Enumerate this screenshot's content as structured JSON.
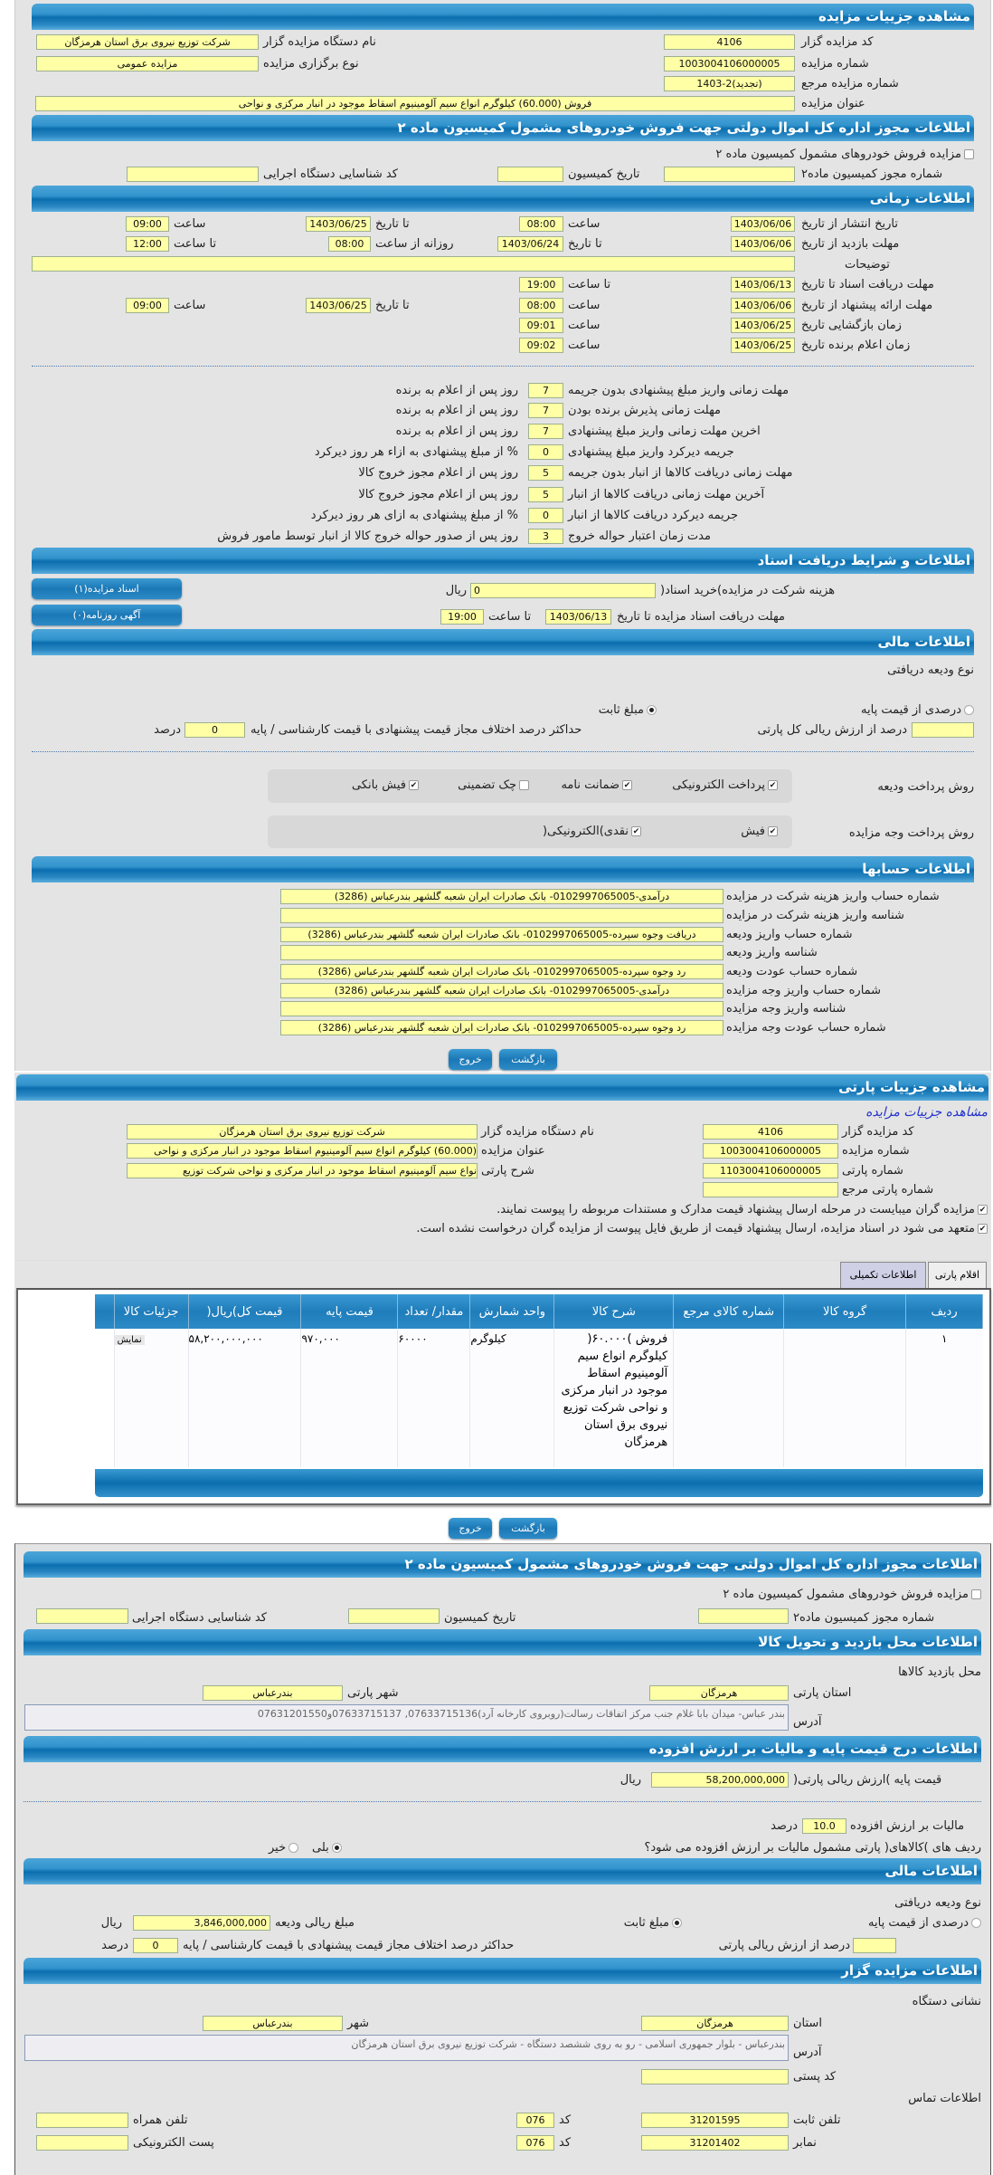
{
  "auction": {
    "title": "مشاهده جزییات مزایده",
    "kod_label": "کد مزایده گزار",
    "kod": "4106",
    "shomare_label": "شماره مزایده",
    "shomare": "1003004106000005",
    "marja_label": "شماره مزایده مرجع",
    "marja": "(تجدید)2-1403",
    "onvan_label": "عنوان مزایده",
    "onvan": "فروش (60.000) کیلوگرم انواع سیم آلومینیوم اسقاط موجود در انبار مرکزی و نواحی",
    "nam_label": "نام دستگاه مزایده گزار",
    "nam": "شرکت توزیع نیروی برق استان هرمزگان",
    "nou_label": "نوع برگزاری مزایده",
    "nou": "مزایده عمومی"
  },
  "permit": {
    "title": "اطلاعات مجوز اداره کل اموال دولتی جهت فروش خودروهای مشمول کمیسیون ماده ۲",
    "checkbox_label": "مزایده فروش خودروهای مشمول کمیسیون ماده ۲",
    "checked": false,
    "shomare_label": "شماره مجوز کمیسیون ماده۲",
    "shomare": "",
    "tarikh_label": "تاریخ کمیسیون",
    "tarikh": "",
    "kod_label": "کد شناسایی دستگاه اجرایی",
    "kod": ""
  },
  "timing": {
    "title": "اطلاعات زمانی",
    "enteshar_label": "تاریخ انتشار  از تاریخ",
    "enteshar_from": "1403/06/06",
    "saat": "ساعت",
    "enteshar_from_time": "08:00",
    "ta_tarikh": "تا تاریخ",
    "enteshar_to": "1403/06/25",
    "enteshar_to_time": "09:00",
    "bazdid_label": "مهلت بازدید  از تاریخ",
    "bazdid_from": "1403/06/06",
    "bazdid_to": "1403/06/24",
    "roozane": "روزانه از ساعت",
    "bazdid_from_time": "08:00",
    "ta_saat": "تا ساعت",
    "bazdid_to_time": "12:00",
    "tozihat_label": "توضیحات",
    "tozihat": "",
    "daryaft_label": "مهلت دریافت اسناد  تا تاریخ",
    "daryaft_to": "1403/06/13",
    "daryaft_time": "19:00",
    "erae_label": "مهلت ارائه پیشنهاد  از تاریخ",
    "erae_from": "1403/06/06",
    "erae_from_time": "08:00",
    "erae_to": "1403/06/25",
    "erae_to_time": "09:00",
    "bazgoshaei_label": "زمان بازگشایی    تاریخ",
    "bazgoshaei": "1403/06/25",
    "bazgoshaei_time": "09:01",
    "elam_label": "زمان اعلام برنده    تاریخ",
    "elam": "1403/06/25",
    "elam_time": "09:02"
  },
  "deadlines": [
    {
      "label": "مهلت زمانی واریز مبلغ پیشنهادی بدون جریمه",
      "value": "7",
      "suffix": "روز پس از اعلام به برنده"
    },
    {
      "label": "مهلت زمانی پذیرش برنده بودن",
      "value": "7",
      "suffix": "روز پس از اعلام به برنده"
    },
    {
      "label": "اخرین مهلت زمانی واریز مبلغ پیشنهادی",
      "value": "7",
      "suffix": "روز پس از اعلام به برنده"
    },
    {
      "label": "جریمه دیرکرد واریز مبلغ پیشنهادی",
      "value": "0",
      "suffix": "% از مبلغ پیشنهادی به ازاء هر روز دیرکرد"
    },
    {
      "label": "مهلت زمانی دریافت کالاها از انبار بدون جریمه",
      "value": "5",
      "suffix": "روز پس از اعلام مجوز خروج کالا"
    },
    {
      "label": "آخرین مهلت زمانی دریافت کالاها از انبار",
      "value": "5",
      "suffix": "روز پس از اعلام مجوز خروج کالا"
    },
    {
      "label": "جریمه دیرکرد دریافت کالاها از انبار",
      "value": "0",
      "suffix": "% از مبلغ پیشنهادی به ازای هر روز دیرکرد"
    },
    {
      "label": "مدت زمان اعتبار حواله خروج",
      "value": "3",
      "suffix": "روز پس از صدور حواله خروج کالا از انبار توسط مامور فروش"
    }
  ],
  "documents": {
    "title": "اطلاعات و شرایط دریافت اسناد",
    "hazine_label": "هزینه شرکت در مزایده)خرید اسناد(",
    "hazine": "0",
    "rial": "ریال",
    "mohlat_label": "مهلت دریافت اسناد مزایده تا تاریخ",
    "mohlat_date": "1403/06/13",
    "ta_saat": "تا ساعت",
    "mohlat_time": "19:00",
    "btn_asnad": "اسناد مزایده(۱)",
    "btn_agahi": "آگهی روزنامه(۰)"
  },
  "finance": {
    "title": "اطلاعات مالی",
    "nou_label": "نوع ودیعه دریافتی",
    "radio_percent": "درصدی از قیمت پایه",
    "radio_fixed": "مبلغ ثابت",
    "selected": "مبلغ ثابت",
    "percent_label": "درصد از ارزش ریالی کل پارتی",
    "percent": "",
    "max_label": "حداکثر درصد اختلاف مجاز قیمت پیشنهادی با قیمت کارشناسی / پایه",
    "max": "0",
    "darsad": "درصد",
    "deposit_method_label": "روش پرداخت ودیعه",
    "deposit_methods": [
      {
        "label": "پرداخت الکترونیکی",
        "checked": true
      },
      {
        "label": "ضمانت نامه",
        "checked": true
      },
      {
        "label": "چک تضمینی",
        "checked": false
      },
      {
        "label": "فیش بانکی",
        "checked": true
      }
    ],
    "payment_method_label": "روش پرداخت وجه مزایده",
    "payment_methods": [
      {
        "label": "فیش",
        "checked": true
      },
      {
        "label": "نقدی)الکترونیکی(",
        "checked": true
      }
    ]
  },
  "accounts": {
    "title": "اطلاعات حسابها",
    "rows": [
      {
        "label": "شماره حساب واریز هزینه شرکت در مزایده",
        "value": "درآمدی-0102997065005- بانک صادرات ایران شعبه گلشهر بندرعباس (3286)"
      },
      {
        "label": "شناسه واریز هزینه شرکت در مزایده",
        "value": ""
      },
      {
        "label": "شماره حساب واریز ودیعه",
        "value": "دریافت وجوه سپرده-0102997065005- بانک صادرات ایران شعبه گلشهر بندرعباس (3286)"
      },
      {
        "label": "شناسه واریز ودیعه",
        "value": ""
      },
      {
        "label": "شماره حساب عودت ودیعه",
        "value": "رد وجوه سپرده-0102997065005- بانک صادرات ایران شعبه گلشهر بندرعباس (3286)"
      },
      {
        "label": "شماره حساب واریز وجه مزایده",
        "value": "درآمدی-0102997065005- بانک صادرات ایران شعبه گلشهر بندرعباس (3286)"
      },
      {
        "label": "شناسه واریز وجه مزایده",
        "value": ""
      },
      {
        "label": "شماره حساب عودت وجه مزایده",
        "value": "رد وجوه سپرده-0102997065005- بانک صادرات ایران شعبه گلشهر بندرعباس (3286)"
      }
    ]
  },
  "buttons": {
    "back": "بازگشت",
    "exit": "خروج"
  },
  "party": {
    "title": "مشاهده جزییات پارتی",
    "link": "مشاهده جزییات مزایده",
    "kod_label": "کد مزایده گزار",
    "kod": "4106",
    "shomare_label": "شماره مزایده",
    "shomare": "1003004106000005",
    "parti_label": "شماره پارتی",
    "parti": "1103004106000005",
    "marja_label": "شماره پارتی مرجع",
    "marja": "",
    "nam_label": "نام دستگاه مزایده گزار",
    "nam": "شرکت توزیع نیروی برق استان هرمزگان",
    "onvan_label": "عنوان مزایده",
    "onvan": "(60.000) کیلوگرم انواع سیم آلومینیوم اسقاط موجود در انبار مرکزی و نواحی",
    "sharh_label": "شرح پارتی",
    "sharh": "نواع سیم آلومینیوم اسقاط موجود در انبار مرکزی و نواحی شرکت توزیع",
    "check1": "مزایده گران میبایست در مرحله ارسال پیشنهاد قیمت مدارک و مستندات مربوطه را پیوست نمایند.",
    "check2": "متعهد می شود در اسناد مزایده، ارسال پیشنهاد قیمت از طریق فایل پیوست از مزایده گران درخواست نشده است.",
    "tabs": [
      {
        "label": "اقلام پارتی",
        "active": false
      },
      {
        "label": "اطلاعات تکمیلی",
        "active": true
      }
    ],
    "table": {
      "headers": [
        "ردیف",
        "گروه کالا",
        "شماره کالای مرجع",
        "شرح کالا",
        "واحد شمارش",
        "مقدار/ تعداد",
        "قیمت پایه",
        "قیمت کل)ریال(",
        "جزئیات کالا"
      ],
      "rows": [
        {
          "radif": "۱",
          "group": "",
          "ref": "",
          "sharh": "فروش )۶۰.۰۰۰( کیلوگرم انواع سیم آلومینیوم اسقاط موجود در انبار مرکزی و نواحی شرکت توزیع نیروی برق استان هرمزگان",
          "unit": "کیلوگرم",
          "qty": "۶۰۰۰۰",
          "base": "۹۷۰,۰۰۰",
          "total": "۵۸,۲۰۰,۰۰۰,۰۰۰",
          "details": "نمایش"
        }
      ]
    }
  },
  "lower_permit": {
    "title": "اطلاعات مجوز اداره کل اموال دولتی جهت فروش خودروهای مشمول کمیسیون ماده ۲",
    "checkbox_label": "مزایده فروش خودروهای مشمول کمیسیون ماده ۲",
    "shomare_label": "شماره مجوز کمیسیون ماده۲",
    "tarikh_label": "تاریخ کمیسیون",
    "kod_label": "کد شناسایی دستگاه اجرایی"
  },
  "visit": {
    "title": "اطلاعات محل بازدید و تحویل کالا",
    "mahal": "محل بازدید کالاها",
    "ostan_label": "استان پارتی",
    "ostan": "هرمزگان",
    "shahr_label": "شهر پارتی",
    "shahr": "بندرعباس",
    "address_label": "آدرس",
    "address": "بندر عباس-  میدان بابا غلام  جنب مرکز اتفاقات رسالت(روبروی کارخانه آرد)07633715136, 07633715137و07631201550"
  },
  "price": {
    "title": "اطلاعات درج قیمت پایه و مالیات بر ارزش افزوده",
    "base_label": "قیمت پایه )ارزش ریالی پارتی(",
    "base": "58,200,000,000",
    "rial": "ریال",
    "vat_label": "مالیات بر ارزش افزوده",
    "vat": "10.0",
    "darsad": "درصد",
    "vat_q": "ردیف های )کالاهای( پارتی مشمول مالیات بر ارزش افزوده می شود؟",
    "yes": "بلی",
    "no": "خیر",
    "selected": "بلی"
  },
  "finance2": {
    "title": "اطلاعات مالی",
    "nou_label": "نوع ودیعه دریافتی",
    "radio_percent": "درصدی از قیمت پایه",
    "radio_fixed": "مبلغ ثابت",
    "selected": "مبلغ ثابت",
    "amount_label": "مبلغ ریالی ودیعه",
    "amount": "3,846,000,000",
    "rial": "ریال",
    "percent_label": "درصد از ارزش ریالی پارتی",
    "percent": "",
    "max_label": "حداکثر درصد اختلاف مجاز قیمت پیشنهادی با قیمت کارشناسی / پایه",
    "max": "0",
    "darsad": "درصد"
  },
  "auctioneer": {
    "title": "اطلاعات مزایده گزار",
    "neshani": "نشانی دستگاه",
    "ostan_label": "استان",
    "ostan": "هرمزگان",
    "shahr_label": "شهر",
    "shahr": "بندرعباس",
    "address_label": "آدرس",
    "address": "بندرعباس - بلوار جمهوری اسلامی - رو به روی ششصد دستگاه - شرکت توزیع نیروی برق استان هرمزگان",
    "posti_label": "کد پستی",
    "posti": "",
    "tamas": "اطلاعات تماس",
    "tel_label": "تلفن ثابت",
    "tel": "31201595",
    "kod_label": "کد",
    "tel_code": "076",
    "fax_label": "نمابر",
    "fax": "31201402",
    "fax_code": "076",
    "mobile_label": "تلفن همراه",
    "mobile": "",
    "email_label": "پست الکترونیکی",
    "email": ""
  },
  "colors": {
    "header_blue": "#1b78b6",
    "input_yellow": "#ffffa6",
    "page_gray": "#e4e4e4",
    "link_blue": "#2233cc"
  }
}
